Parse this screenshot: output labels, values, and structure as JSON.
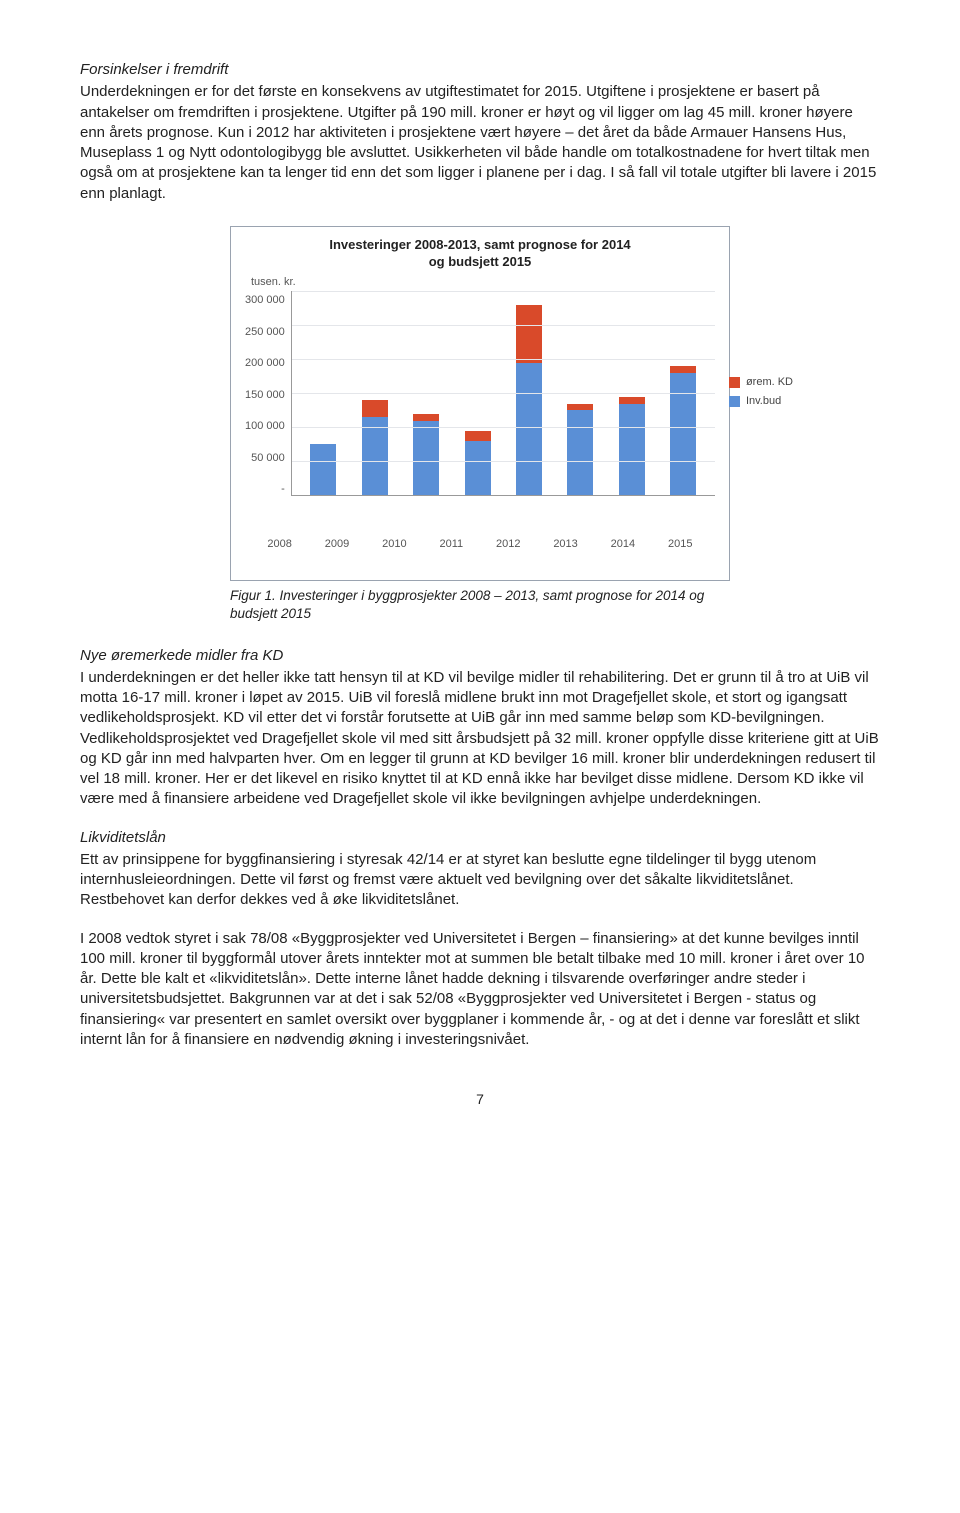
{
  "section1": {
    "heading": "Forsinkelser i fremdrift",
    "body": "Underdekningen er for det første en konsekvens av utgiftestimatet for 2015. Utgiftene i prosjektene er basert på antakelser om fremdriften i prosjektene. Utgifter på 190 mill. kroner er høyt og vil ligger om lag 45 mill. kroner høyere enn årets prognose. Kun i 2012 har aktiviteten i prosjektene vært høyere – det året da både Armauer Hansens Hus, Museplass 1 og Nytt odontologibygg ble avsluttet. Usikkerheten vil både handle om totalkostnadene for hvert tiltak men også om at prosjektene kan ta lenger tid enn det som ligger i planene per i dag. I så fall vil totale utgifter bli lavere i 2015 enn planlagt."
  },
  "chart": {
    "type": "bar-stacked",
    "title_line1": "Investeringer 2008-2013, samt prognose for 2014",
    "title_line2": "og budsjett 2015",
    "axis_unit": "tusen. kr.",
    "y_max": 300000,
    "y_ticks": [
      "300 000",
      "250 000",
      "200 000",
      "150 000",
      "100 000",
      "50 000",
      "-"
    ],
    "categories": [
      "2008",
      "2009",
      "2010",
      "2011",
      "2012",
      "2013",
      "2014",
      "2015"
    ],
    "series": {
      "inv_bud": [
        75000,
        115000,
        110000,
        80000,
        195000,
        125000,
        135000,
        180000
      ],
      "orem_kd": [
        0,
        25000,
        10000,
        15000,
        85000,
        10000,
        10000,
        10000
      ]
    },
    "colors": {
      "inv_bud": "#5a8fd6",
      "orem_kd": "#d94a2a",
      "grid": "#e4e6ea",
      "axis": "#999999",
      "bg": "#ffffff"
    },
    "legend": {
      "orem_kd": "ørem. KD",
      "inv_bud": "Inv.bud"
    },
    "caption": "Figur 1. Investeringer i byggprosjekter 2008 – 2013, samt prognose for 2014 og budsjett 2015"
  },
  "section2": {
    "heading": "Nye øremerkede midler fra KD",
    "body": "I underdekningen er det heller ikke tatt hensyn til at KD vil bevilge midler til rehabilitering. Det er grunn til å tro at UiB vil motta 16-17 mill. kroner i løpet av 2015. UiB vil foreslå midlene brukt inn mot Dragefjellet skole, et stort og igangsatt vedlikeholdsprosjekt. KD vil etter det vi forstår forutsette at UiB går inn med samme beløp som KD-bevilgningen. Vedlikeholdsprosjektet ved Dragefjellet skole vil med sitt årsbudsjett på 32 mill. kroner oppfylle disse kriteriene gitt at UiB og KD går inn med halvparten hver. Om en legger til grunn at KD bevilger 16 mill. kroner blir underdekningen redusert til vel 18 mill. kroner. Her er det likevel en risiko knyttet til at KD ennå ikke har bevilget disse midlene. Dersom KD ikke vil være med å finansiere arbeidene ved Dragefjellet skole vil ikke bevilgningen avhjelpe underdekningen."
  },
  "section3": {
    "heading": "Likviditetslån",
    "p1": "Ett av prinsippene for byggfinansiering i styresak 42/14 er at styret kan beslutte egne tildelinger til bygg utenom internhusleieordningen. Dette vil først og fremst være aktuelt ved bevilgning over det såkalte likviditetslånet. Restbehovet kan derfor dekkes ved å øke likviditetslånet.",
    "p2": "I 2008 vedtok styret i sak 78/08 «Byggprosjekter ved Universitetet i Bergen – finansiering» at det kunne bevilges inntil 100 mill. kroner til byggformål utover årets inntekter mot at summen ble betalt tilbake med 10 mill. kroner i året over 10 år. Dette ble kalt et «likviditetslån». Dette interne lånet hadde dekning i tilsvarende overføringer andre steder i universitetsbudsjettet. Bakgrunnen var at det i sak 52/08 «Byggprosjekter ved Universitetet i Bergen - status og finansiering« var presentert en samlet oversikt over byggplaner i kommende år, - og at det i denne var foreslått et slikt internt lån for å finansiere en nødvendig økning i investeringsnivået."
  },
  "page_number": "7"
}
